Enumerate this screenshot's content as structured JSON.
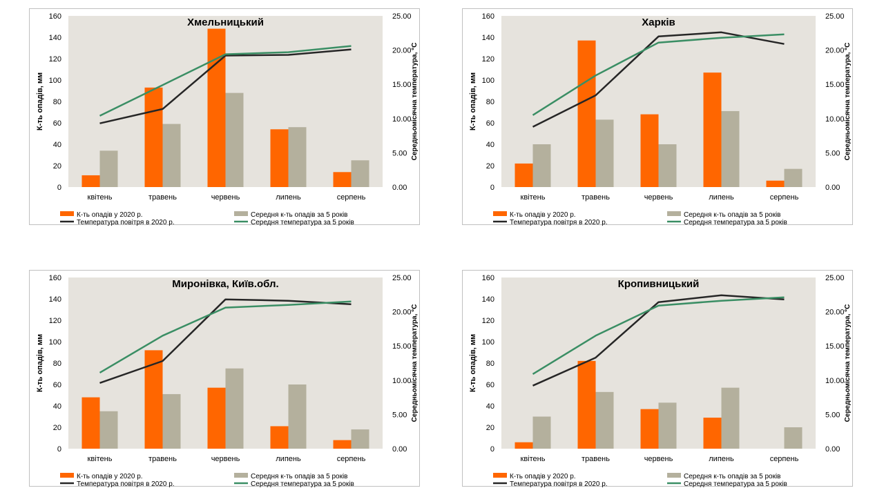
{
  "legend_labels": {
    "precip_2020": "К-ть опадів у 2020 р.",
    "precip_avg5": "Середня к-ть опадів за 5 років",
    "temp_2020": "Температура повітря в 2020 р.",
    "temp_avg5": "Середня температура за 5 років"
  },
  "colors": {
    "precip_2020": "#ff6600",
    "precip_avg5": "#b4b09d",
    "temp_2020": "#262626",
    "temp_avg5": "#3a8e64",
    "plot_bg": "#e6e3dd"
  },
  "chart_data": [
    {
      "type": "bar+line",
      "title": "Хмельницький",
      "categories": [
        "квітень",
        "травень",
        "червень",
        "липень",
        "серпень"
      ],
      "ylabel": "К-ть опадів, мм",
      "y2label": "Середньомісячна температура, °С",
      "ylim": [
        0,
        160
      ],
      "y2lim": [
        0,
        25
      ],
      "yticks": [
        "0",
        "20",
        "40",
        "60",
        "80",
        "100",
        "120",
        "140",
        "160"
      ],
      "y2ticks": [
        "0.00",
        "5.00",
        "10.00",
        "15.00",
        "20.00",
        "25.00"
      ],
      "series": [
        {
          "name": "К-ть опадів у 2020 р.",
          "kind": "bar",
          "axis": "y",
          "values": [
            11,
            93,
            148,
            54,
            14
          ]
        },
        {
          "name": "Середня к-ть опадів за 5 років",
          "kind": "bar",
          "axis": "y",
          "values": [
            34,
            59,
            88,
            56,
            25
          ]
        },
        {
          "name": "Температура повітря в 2020 р.",
          "kind": "line",
          "axis": "y2",
          "values": [
            9.3,
            11.4,
            19.2,
            19.3,
            20.1
          ]
        },
        {
          "name": "Середня температура за 5 років",
          "kind": "line",
          "axis": "y2",
          "values": [
            10.4,
            14.9,
            19.4,
            19.7,
            20.6
          ]
        }
      ]
    },
    {
      "type": "bar+line",
      "title": "Харків",
      "categories": [
        "квітень",
        "травень",
        "червень",
        "липень",
        "серпень"
      ],
      "ylabel": "К-ть опадів, мм",
      "y2label": "Середньомісячна температура, °С",
      "ylim": [
        0,
        160
      ],
      "y2lim": [
        0,
        25
      ],
      "yticks": [
        "0",
        "20",
        "40",
        "60",
        "80",
        "100",
        "120",
        "140",
        "160"
      ],
      "y2ticks": [
        "0.00",
        "5.00",
        "10.00",
        "15.00",
        "20.00",
        "25.00"
      ],
      "series": [
        {
          "name": "К-ть опадів у 2020 р.",
          "kind": "bar",
          "axis": "y",
          "values": [
            22,
            137,
            68,
            107,
            6
          ]
        },
        {
          "name": "Середня к-ть опадів за 5 років",
          "kind": "bar",
          "axis": "y",
          "values": [
            40,
            63,
            40,
            71,
            17
          ]
        },
        {
          "name": "Температура повітря в 2020 р.",
          "kind": "line",
          "axis": "y2",
          "values": [
            8.8,
            13.4,
            22.0,
            22.6,
            20.9
          ]
        },
        {
          "name": "Середня температура за 5 років",
          "kind": "line",
          "axis": "y2",
          "values": [
            10.5,
            16.3,
            21.1,
            21.8,
            22.3
          ]
        }
      ]
    },
    {
      "type": "bar+line",
      "title": "Миронівка, Київ.обл.",
      "categories": [
        "квітень",
        "травень",
        "червень",
        "липень",
        "серпень"
      ],
      "ylabel": "К-ть опадів, мм",
      "y2label": "Середньомісячна температура, °С",
      "ylim": [
        0,
        160
      ],
      "y2lim": [
        0,
        25
      ],
      "yticks": [
        "0",
        "20",
        "40",
        "60",
        "80",
        "100",
        "120",
        "140",
        "160"
      ],
      "y2ticks": [
        "0.00",
        "5.00",
        "10.00",
        "15.00",
        "20.00",
        "25.00"
      ],
      "series": [
        {
          "name": "К-ть опадів у 2020 р.",
          "kind": "bar",
          "axis": "y",
          "values": [
            48,
            92,
            57,
            21,
            8
          ]
        },
        {
          "name": "Середня к-ть опадів за 5 років",
          "kind": "bar",
          "axis": "y",
          "values": [
            35,
            51,
            75,
            60,
            18
          ]
        },
        {
          "name": "Температура повітря в 2020 р.",
          "kind": "line",
          "axis": "y2",
          "values": [
            9.6,
            12.8,
            21.8,
            21.6,
            21.1
          ]
        },
        {
          "name": "Середня температура за 5 років",
          "kind": "line",
          "axis": "y2",
          "values": [
            11.1,
            16.5,
            20.6,
            21.0,
            21.5
          ]
        }
      ]
    },
    {
      "type": "bar+line",
      "title": "Кропивницький",
      "categories": [
        "квітень",
        "травень",
        "червень",
        "липень",
        "серпень"
      ],
      "ylabel": "К-ть опадів, мм",
      "y2label": "Середньомісячна температура, °С",
      "ylim": [
        0,
        160
      ],
      "y2lim": [
        0,
        25
      ],
      "yticks": [
        "0",
        "20",
        "40",
        "60",
        "80",
        "100",
        "120",
        "140",
        "160"
      ],
      "y2ticks": [
        "0.00",
        "5.00",
        "10.00",
        "15.00",
        "20.00",
        "25.00"
      ],
      "series": [
        {
          "name": "К-ть опадів у 2020 р.",
          "kind": "bar",
          "axis": "y",
          "values": [
            6,
            82,
            37,
            29,
            0
          ]
        },
        {
          "name": "Середня к-ть опадів за 5 років",
          "kind": "bar",
          "axis": "y",
          "values": [
            30,
            53,
            43,
            57,
            20
          ]
        },
        {
          "name": "Температура повітря в 2020 р.",
          "kind": "line",
          "axis": "y2",
          "values": [
            9.2,
            13.3,
            21.4,
            22.4,
            21.8
          ]
        },
        {
          "name": "Середня температура за 5 років",
          "kind": "line",
          "axis": "y2",
          "values": [
            10.9,
            16.5,
            20.9,
            21.6,
            22.1
          ]
        }
      ]
    }
  ]
}
